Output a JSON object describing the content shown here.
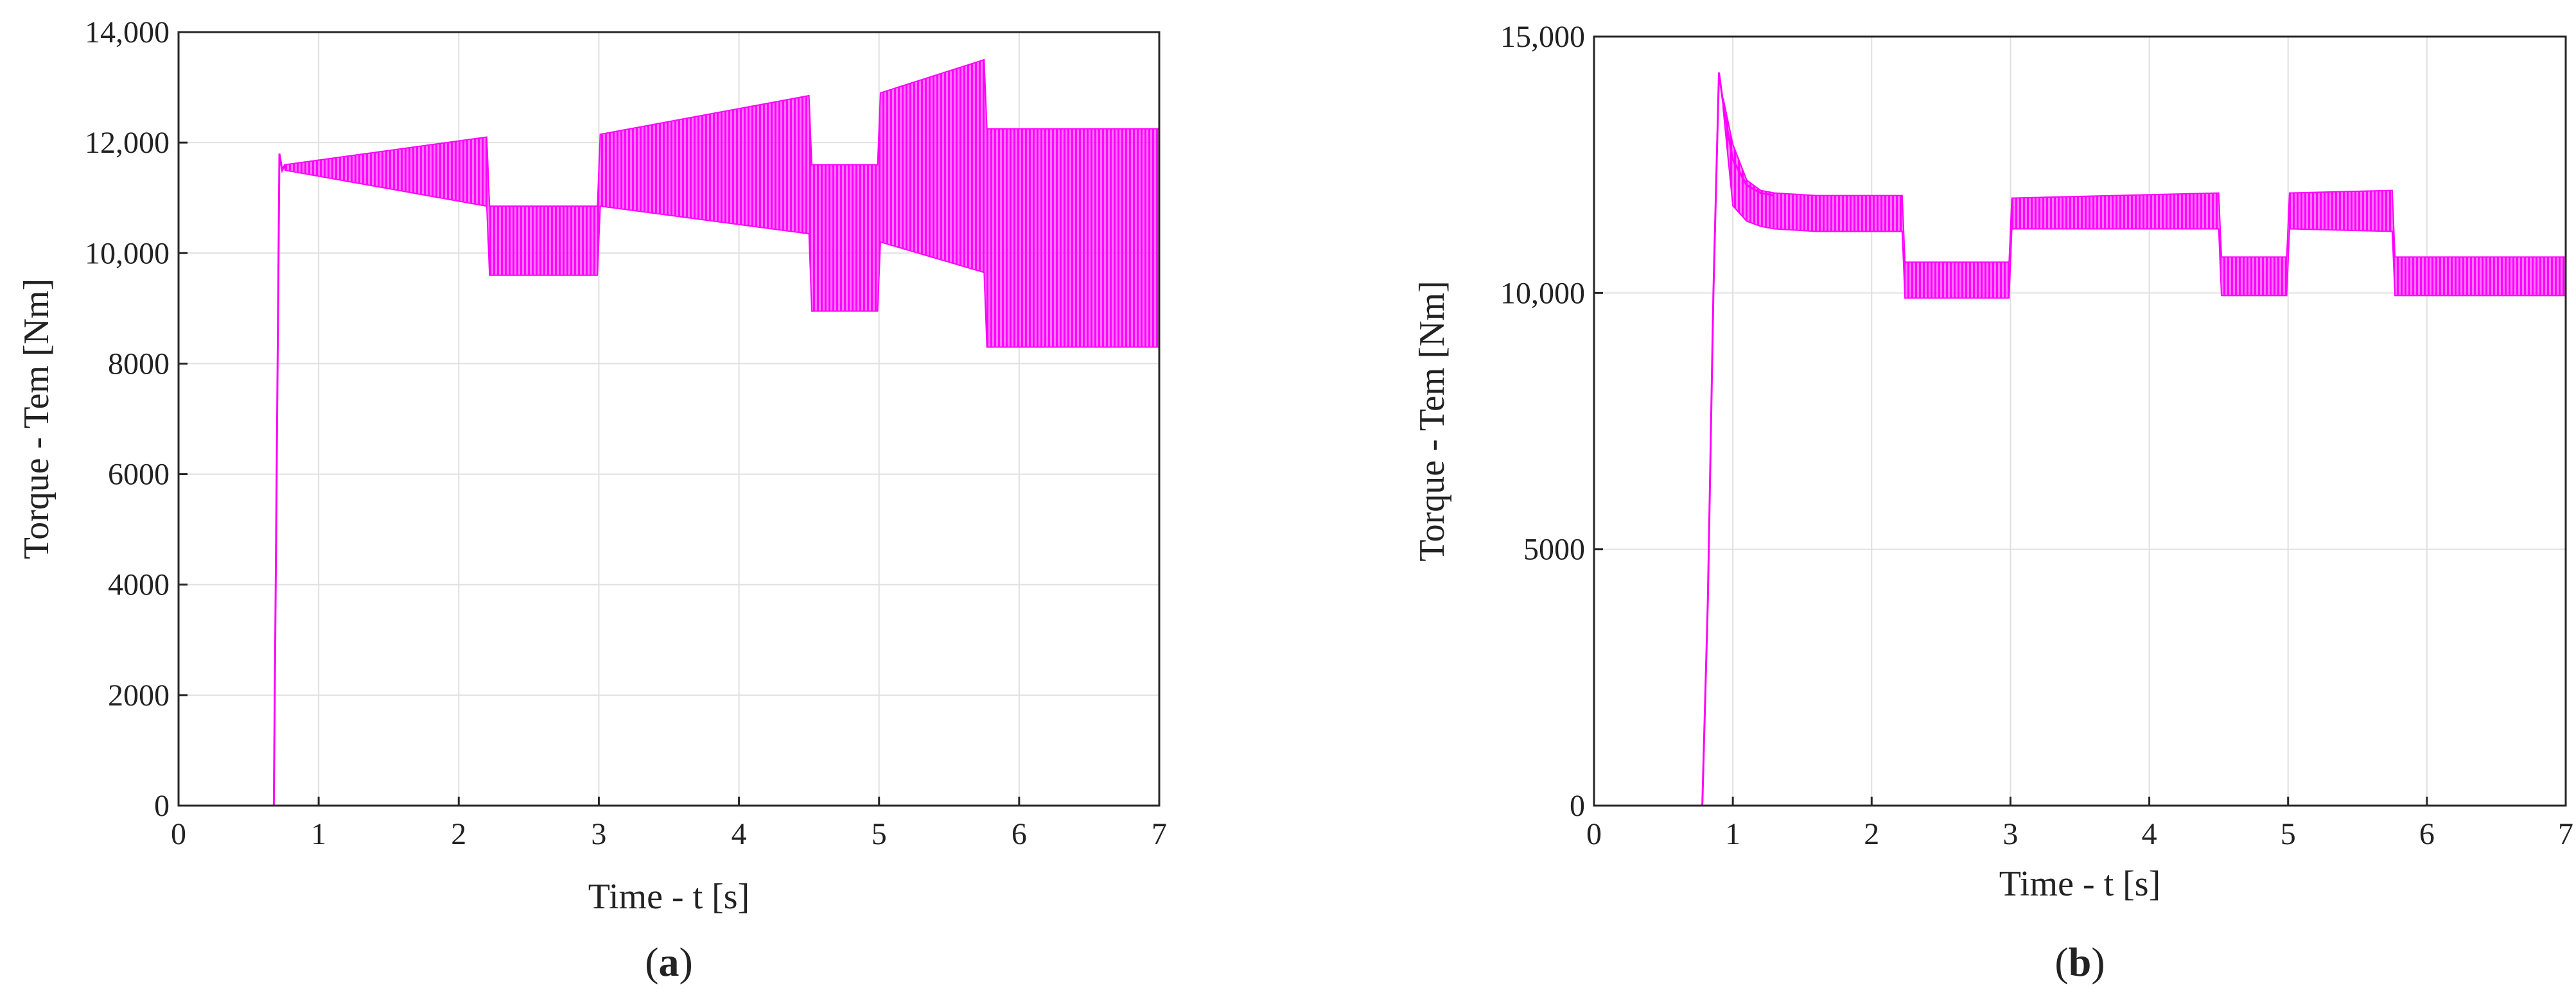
{
  "figure": {
    "background": "#ffffff",
    "trace_color": "#ff00ff",
    "grid_color": "#e0e0e0",
    "axis_color": "#262626"
  },
  "chart_data": [
    {
      "id": "a",
      "type": "line",
      "panel_label": "a",
      "title": "",
      "xlabel": "Time - t [s]",
      "ylabel": "Torque - Tem [Nm]",
      "xlim": [
        0,
        7
      ],
      "ylim": [
        0,
        14000
      ],
      "xticks": [
        0,
        1,
        2,
        3,
        4,
        5,
        6,
        7
      ],
      "xtick_labels": [
        "0",
        "1",
        "2",
        "3",
        "4",
        "5",
        "6",
        "7"
      ],
      "yticks": [
        0,
        2000,
        4000,
        6000,
        8000,
        10000,
        12000,
        14000
      ],
      "ytick_labels": [
        "0",
        "2000",
        "4000",
        "6000",
        "8000",
        "10,000",
        "12,000",
        "14,000"
      ],
      "grid": true,
      "series": [
        {
          "color": "#ff00ff",
          "startup_trace": [
            [
              0,
              0
            ],
            [
              0.68,
              0
            ],
            [
              0.72,
              11800
            ],
            [
              0.74,
              11500
            ],
            [
              0.76,
              11600
            ]
          ],
          "oscillation_envelope": {
            "upper": [
              [
                0.76,
                11600
              ],
              [
                2.2,
                12100
              ],
              [
                2.22,
                10850
              ],
              [
                2.99,
                10850
              ],
              [
                3.01,
                12150
              ],
              [
                4.5,
                12850
              ],
              [
                4.52,
                11600
              ],
              [
                4.99,
                11600
              ],
              [
                5.01,
                12900
              ],
              [
                5.75,
                13500
              ],
              [
                5.77,
                12250
              ],
              [
                7.0,
                12250
              ]
            ],
            "lower": [
              [
                0.76,
                11500
              ],
              [
                2.2,
                10850
              ],
              [
                2.22,
                9600
              ],
              [
                2.99,
                9600
              ],
              [
                3.01,
                10850
              ],
              [
                4.5,
                10350
              ],
              [
                4.52,
                8950
              ],
              [
                4.99,
                8950
              ],
              [
                5.01,
                10200
              ],
              [
                5.75,
                9650
              ],
              [
                5.77,
                8300
              ],
              [
                7.0,
                8300
              ]
            ]
          }
        }
      ]
    },
    {
      "id": "b",
      "type": "line",
      "panel_label": "b",
      "title": "",
      "xlabel": "Time - t [s]",
      "ylabel": "Torque - Tem [Nm]",
      "xlim": [
        0,
        7
      ],
      "ylim": [
        0,
        15000
      ],
      "xticks": [
        0,
        1,
        2,
        3,
        4,
        5,
        6,
        7
      ],
      "xtick_labels": [
        "0",
        "1",
        "2",
        "3",
        "4",
        "5",
        "6",
        "7"
      ],
      "yticks": [
        0,
        5000,
        10000,
        15000
      ],
      "ytick_labels": [
        "0",
        "5000",
        "10,000",
        "15,000"
      ],
      "grid": true,
      "series": [
        {
          "color": "#ff00ff",
          "startup_trace": [
            [
              0,
              0
            ],
            [
              0.78,
              0
            ],
            [
              0.82,
              4000
            ],
            [
              0.86,
              10000
            ],
            [
              0.9,
              14300
            ],
            [
              0.94,
              13500
            ],
            [
              1.0,
              12600
            ],
            [
              1.1,
              12100
            ],
            [
              1.2,
              11950
            ],
            [
              1.3,
              11900
            ]
          ],
          "oscillation_envelope": {
            "upper": [
              [
                0.93,
                13800
              ],
              [
                1.0,
                12900
              ],
              [
                1.1,
                12200
              ],
              [
                1.2,
                12000
              ],
              [
                1.3,
                11950
              ],
              [
                1.6,
                11900
              ],
              [
                2.22,
                11900
              ],
              [
                2.24,
                10600
              ],
              [
                2.99,
                10600
              ],
              [
                3.01,
                11850
              ],
              [
                4.5,
                11950
              ],
              [
                4.52,
                10700
              ],
              [
                4.99,
                10700
              ],
              [
                5.01,
                11950
              ],
              [
                5.75,
                12000
              ],
              [
                5.77,
                10700
              ],
              [
                7.0,
                10700
              ]
            ],
            "lower": [
              [
                0.93,
                13600
              ],
              [
                1.0,
                11700
              ],
              [
                1.1,
                11400
              ],
              [
                1.2,
                11300
              ],
              [
                1.3,
                11250
              ],
              [
                1.6,
                11200
              ],
              [
                2.22,
                11200
              ],
              [
                2.24,
                9900
              ],
              [
                2.99,
                9900
              ],
              [
                3.01,
                11250
              ],
              [
                4.5,
                11250
              ],
              [
                4.52,
                9950
              ],
              [
                4.99,
                9950
              ],
              [
                5.01,
                11250
              ],
              [
                5.75,
                11200
              ],
              [
                5.77,
                9950
              ],
              [
                7.0,
                9950
              ]
            ]
          }
        }
      ]
    }
  ]
}
